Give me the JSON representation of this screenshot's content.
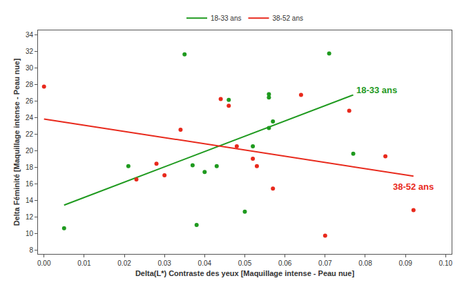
{
  "chart_data": {
    "type": "scatter",
    "x_label": "Delta(L*) Contraste des yeux [Maquillage intense - Peau nue]",
    "y_label": "Delta Féminité [Maquillage intense - Peau nue]",
    "xlim": [
      -0.0015,
      0.1015
    ],
    "xticks": [
      {
        "value": 0,
        "label": "0.00"
      },
      {
        "value": 0.01,
        "label": "0.01"
      },
      {
        "value": 0.02,
        "label": "0.02"
      },
      {
        "value": 0.03,
        "label": "0.03"
      },
      {
        "value": 0.04,
        "label": "0.04"
      },
      {
        "value": 0.05,
        "label": "0.05"
      },
      {
        "value": 0.06,
        "label": "0.06"
      },
      {
        "value": 0.07,
        "label": "0.07"
      },
      {
        "value": 0.08,
        "label": "0.08"
      },
      {
        "value": 0.09,
        "label": "0.09"
      },
      {
        "value": 0.1,
        "label": "0.10"
      }
    ],
    "ylim": [
      7.5,
      34.5
    ],
    "yticks": [
      8,
      10,
      12,
      14,
      16,
      18,
      20,
      22,
      24,
      26,
      28,
      30,
      32,
      34
    ],
    "grid": false,
    "legend": "top",
    "series": [
      {
        "name": "18-33 ans",
        "color": "#1f9a1f",
        "marker": "circle",
        "x": [
          0.005,
          0.021,
          0.035,
          0.037,
          0.038,
          0.04,
          0.043,
          0.046,
          0.05,
          0.052,
          0.056,
          0.056,
          0.056,
          0.057,
          0.071,
          0.077
        ],
        "values": [
          10.6,
          18.1,
          31.6,
          18.2,
          11.0,
          17.4,
          18.1,
          26.1,
          12.6,
          20.5,
          26.8,
          26.4,
          22.7,
          23.5,
          31.7,
          19.6
        ],
        "trend_x": [
          0.005,
          0.077
        ],
        "trend_values": [
          13.4,
          26.7
        ]
      },
      {
        "name": "38-52 ans",
        "color": "#e8291c",
        "marker": "circle",
        "x": [
          0.0,
          0.023,
          0.028,
          0.03,
          0.034,
          0.044,
          0.046,
          0.048,
          0.052,
          0.053,
          0.057,
          0.064,
          0.07,
          0.076,
          0.085,
          0.092
        ],
        "values": [
          27.7,
          16.5,
          18.4,
          17.0,
          22.5,
          26.2,
          25.4,
          20.5,
          19.0,
          18.1,
          15.4,
          26.7,
          9.7,
          24.8,
          19.3,
          12.8
        ],
        "trend_x": [
          0.0,
          0.092
        ],
        "trend_values": [
          23.8,
          16.9
        ]
      }
    ]
  }
}
